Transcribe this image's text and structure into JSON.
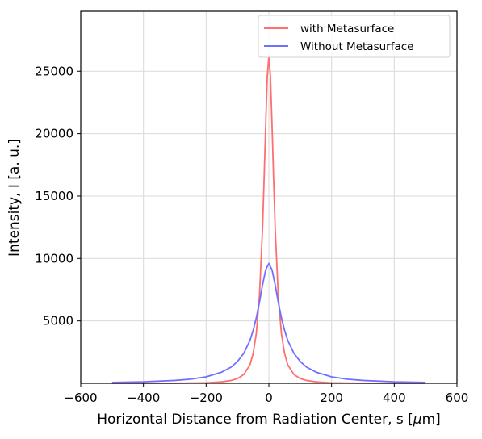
{
  "chart_data": {
    "type": "line",
    "title": "",
    "xlabel": "Horizontal Distance from Radiation Center, s [",
    "xlabel_mu": "μ",
    "xlabel_unit_tail": "m]",
    "ylabel": "Intensity, I [a. u.]",
    "xlim": [
      -600,
      600
    ],
    "ylim": [
      0,
      29800
    ],
    "xticks": [
      -600,
      -400,
      -200,
      0,
      200,
      400,
      600
    ],
    "yticks": [
      5000,
      10000,
      15000,
      20000,
      25000
    ],
    "xtick_labels": [
      "−600",
      "−400",
      "−200",
      "0",
      "200",
      "400",
      "600"
    ],
    "ytick_labels": [
      "5000",
      "10000",
      "15000",
      "20000",
      "25000"
    ],
    "grid": true,
    "legend_position": "top-right",
    "series": [
      {
        "name": "with Metasurface",
        "color": "#ff6f6f",
        "x": [
          -500,
          -300,
          -200,
          -150,
          -120,
          -100,
          -80,
          -60,
          -50,
          -40,
          -30,
          -20,
          -15,
          -10,
          -5,
          0,
          5,
          10,
          15,
          20,
          30,
          40,
          50,
          60,
          80,
          100,
          120,
          150,
          200,
          300,
          500
        ],
        "y": [
          0,
          10,
          40,
          120,
          230,
          380,
          700,
          1500,
          2400,
          4000,
          7000,
          12500,
          16500,
          20800,
          24600,
          26200,
          24600,
          20800,
          16500,
          12500,
          7000,
          4000,
          2400,
          1500,
          700,
          380,
          230,
          120,
          40,
          10,
          0
        ]
      },
      {
        "name": "Without Metasurface",
        "color": "#7070ff",
        "x": [
          -500,
          -400,
          -300,
          -250,
          -200,
          -150,
          -120,
          -100,
          -80,
          -60,
          -50,
          -40,
          -30,
          -20,
          -10,
          0,
          10,
          20,
          30,
          40,
          50,
          60,
          80,
          100,
          120,
          150,
          200,
          250,
          300,
          400,
          500
        ],
        "y": [
          70,
          120,
          230,
          330,
          520,
          900,
          1300,
          1750,
          2400,
          3450,
          4250,
          5250,
          6500,
          7900,
          9100,
          9600,
          9100,
          7900,
          6500,
          5250,
          4250,
          3450,
          2400,
          1750,
          1300,
          900,
          520,
          330,
          230,
          120,
          70
        ]
      }
    ]
  }
}
